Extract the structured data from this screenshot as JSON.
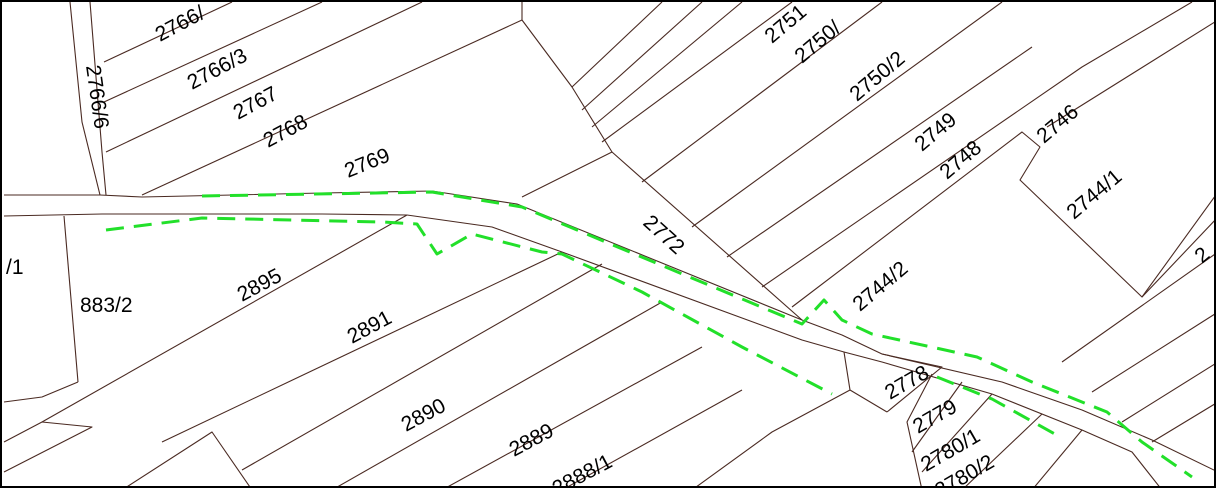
{
  "map": {
    "colors": {
      "boundary": "#4a2a22",
      "marked_route": "#22e02a",
      "frame": "#000000",
      "background": "#ffffff"
    },
    "parcels": [
      {
        "id": "p-2766-partial",
        "number": "2766/"
      },
      {
        "id": "p-2766-3",
        "number": "2766/3"
      },
      {
        "id": "p-2767",
        "number": "2767"
      },
      {
        "id": "p-2768",
        "number": "2768"
      },
      {
        "id": "p-2766-6",
        "number": "2766/6"
      },
      {
        "id": "p-2769",
        "number": "2769"
      },
      {
        "id": "p-2751-partial",
        "number": "2751"
      },
      {
        "id": "p-2750-partial",
        "number": "2750/"
      },
      {
        "id": "p-2750-2",
        "number": "2750/2"
      },
      {
        "id": "p-2749",
        "number": "2749"
      },
      {
        "id": "p-2748",
        "number": "2748"
      },
      {
        "id": "p-2746",
        "number": "2746"
      },
      {
        "id": "p-2744-1",
        "number": "2744/1"
      },
      {
        "id": "p-2772",
        "number": "2772"
      },
      {
        "id": "p-2744-2",
        "number": "2744/2"
      },
      {
        "id": "p-left-partial",
        "number": "/1"
      },
      {
        "id": "p-883-2",
        "number": "883/2"
      },
      {
        "id": "p-2895",
        "number": "2895"
      },
      {
        "id": "p-2891",
        "number": "2891"
      },
      {
        "id": "p-2890",
        "number": "2890"
      },
      {
        "id": "p-2889",
        "number": "2889"
      },
      {
        "id": "p-2888-1",
        "number": "2888/1"
      },
      {
        "id": "p-2778",
        "number": "2778"
      },
      {
        "id": "p-2779",
        "number": "2779"
      },
      {
        "id": "p-2780-1",
        "number": "2780/1"
      },
      {
        "id": "p-2780-2",
        "number": "2780/2"
      },
      {
        "id": "p-right-edge",
        "number": "2"
      }
    ]
  }
}
